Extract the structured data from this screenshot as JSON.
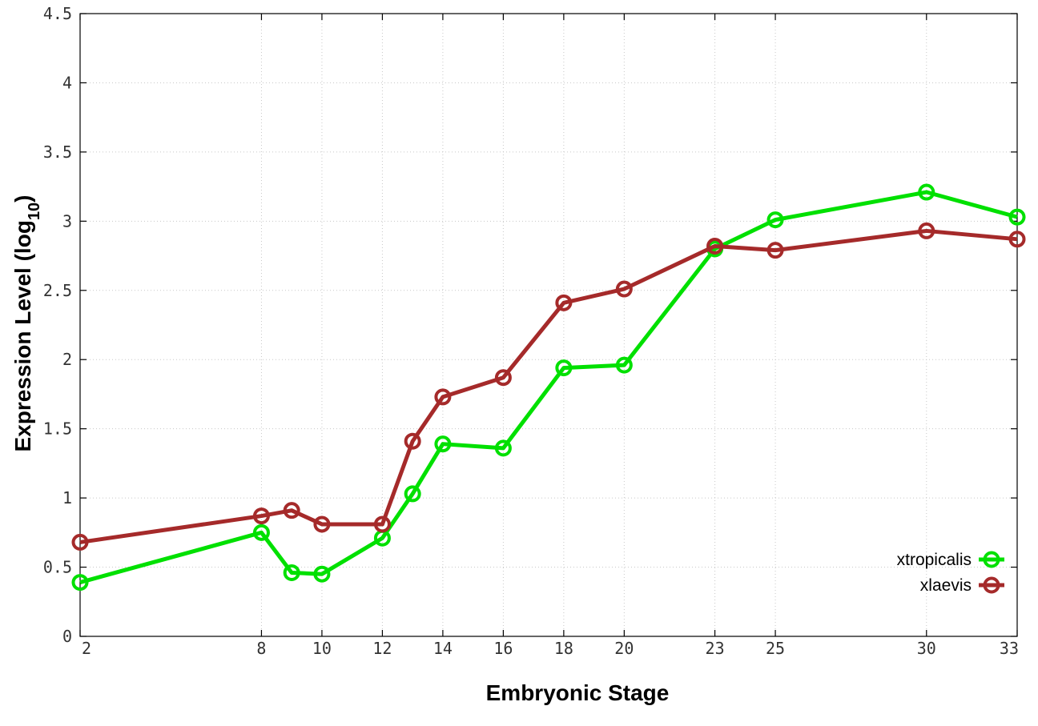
{
  "chart_data": {
    "type": "line",
    "xlabel": "Embryonic Stage",
    "ylabel_main": "Expression Level (log",
    "ylabel_sub": "10",
    "ylabel_close": ")",
    "x": [
      2,
      8,
      9,
      10,
      12,
      13,
      14,
      16,
      18,
      20,
      23,
      25,
      30,
      33
    ],
    "x_ticks": [
      2,
      8,
      10,
      12,
      14,
      16,
      18,
      20,
      23,
      25,
      30,
      33
    ],
    "y_ticks": [
      "0",
      "0.5",
      "1",
      "1.5",
      "2",
      "2.5",
      "3",
      "3.5",
      "4",
      "4.5"
    ],
    "xlim": [
      2,
      33
    ],
    "ylim": [
      0,
      4.5
    ],
    "grid": true,
    "legend_position": "bottom-right",
    "series": [
      {
        "name": "xtropicalis",
        "color": "#00e000",
        "values": [
          0.39,
          0.75,
          0.46,
          0.45,
          0.71,
          1.03,
          1.39,
          1.36,
          1.94,
          1.96,
          2.8,
          3.01,
          3.21,
          3.03
        ]
      },
      {
        "name": "xlaevis",
        "color": "#a52a2a",
        "values": [
          0.68,
          0.87,
          0.91,
          0.81,
          0.81,
          1.41,
          1.73,
          1.87,
          2.41,
          2.51,
          2.82,
          2.79,
          2.93,
          2.87
        ]
      }
    ]
  }
}
